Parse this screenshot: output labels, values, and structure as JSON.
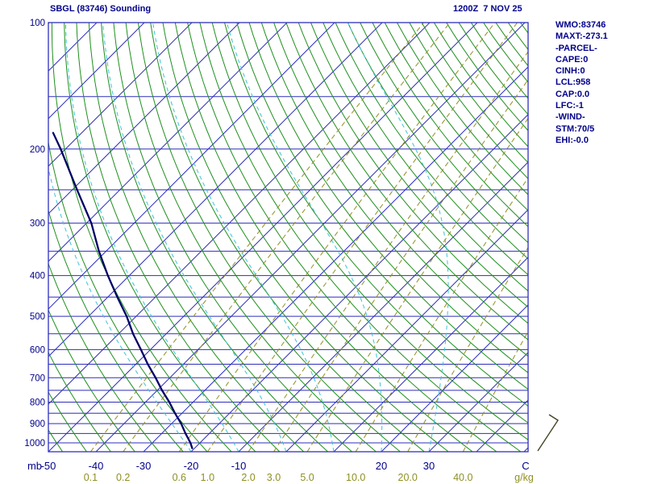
{
  "header": {
    "title": "SBGL (83746) Sounding",
    "datetime": "1200Z  7 NOV 25"
  },
  "info_panel": {
    "lines": [
      "WMO:83746",
      "MAXT:-273.1",
      "-PARCEL-",
      "CAPE:0",
      "CINH:0",
      "LCL:958",
      "CAP:0.0",
      "LFC:-1",
      "-WIND-",
      "STM:70/5",
      "EHI:-0.0"
    ]
  },
  "chart_data": {
    "type": "skew-t-log-p",
    "title": "SBGL (83746) Sounding",
    "time": "1200Z 7 NOV 25",
    "y_axis": {
      "unit": "mb",
      "scale": "log",
      "ticks": [
        100,
        200,
        300,
        400,
        500,
        600,
        700,
        800,
        900,
        1000
      ],
      "range_mb": [
        100,
        1050
      ],
      "gridline_interval_mb": 50
    },
    "x_axis": {
      "unit": "C",
      "ticks": [
        -50,
        -40,
        -30,
        -20,
        -10,
        20,
        30
      ],
      "isotherm_interval_c": 10,
      "skew": "45deg"
    },
    "dry_adiabats": {
      "theta_k_start": 223,
      "theta_k_end": 453,
      "step_k": 5
    },
    "moist_adiabats": {
      "surface_temps_c": [
        -20,
        -10,
        0,
        10,
        20,
        30
      ]
    },
    "mixing_ratio_lines": {
      "unit": "g/kg",
      "values_g_kg": [
        0.1,
        0.2,
        0.6,
        1.0,
        2.0,
        3.0,
        5.0,
        10.0,
        20.0,
        40.0
      ]
    },
    "sounding_trace": {
      "points_p_t": [
        [
          1030,
          -20.5
        ],
        [
          1000,
          -22
        ],
        [
          950,
          -25
        ],
        [
          900,
          -28
        ],
        [
          850,
          -31.5
        ],
        [
          800,
          -35
        ],
        [
          750,
          -39
        ],
        [
          700,
          -43
        ],
        [
          650,
          -47.5
        ],
        [
          600,
          -52
        ],
        [
          550,
          -57
        ],
        [
          500,
          -62
        ],
        [
          450,
          -68
        ],
        [
          400,
          -74.5
        ],
        [
          350,
          -81.5
        ],
        [
          300,
          -89
        ],
        [
          250,
          -99
        ],
        [
          200,
          -111
        ],
        [
          183,
          -116
        ]
      ]
    },
    "wind_barb": {
      "direction_deg": 70,
      "speed_kt": 5
    },
    "colors": {
      "grid": "#2f2fbe",
      "isotherm": "#2f2fbe",
      "dry_adiabat": "#1f8f1f",
      "moist_adiabat": "#3cc3d8",
      "mixing_ratio": "#8f8f23",
      "trace": "#000066",
      "text": "#00008b",
      "barb": "#444422"
    }
  }
}
